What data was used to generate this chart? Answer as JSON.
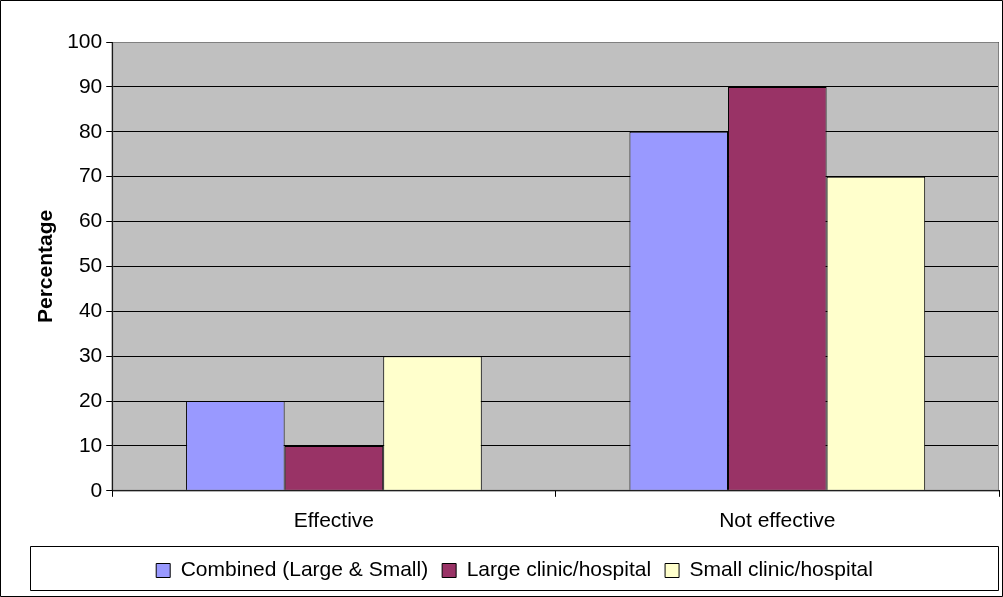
{
  "chart_data": {
    "type": "bar",
    "ylabel": "Percentage",
    "categories": [
      "Effective",
      "Not effective"
    ],
    "series": [
      {
        "name": "Combined (Large & Small)",
        "color": "#9999ff",
        "values": [
          20,
          80
        ]
      },
      {
        "name": "Large clinic/hospital",
        "color": "#993366",
        "values": [
          10,
          90
        ]
      },
      {
        "name": "Small clinic/hospital",
        "color": "#ffffcc",
        "values": [
          30,
          70
        ]
      }
    ],
    "ylim": [
      0,
      100
    ],
    "yticks": [
      0,
      10,
      20,
      30,
      40,
      50,
      60,
      70,
      80,
      90,
      100
    ],
    "grid": "y",
    "legend": "bottom"
  }
}
